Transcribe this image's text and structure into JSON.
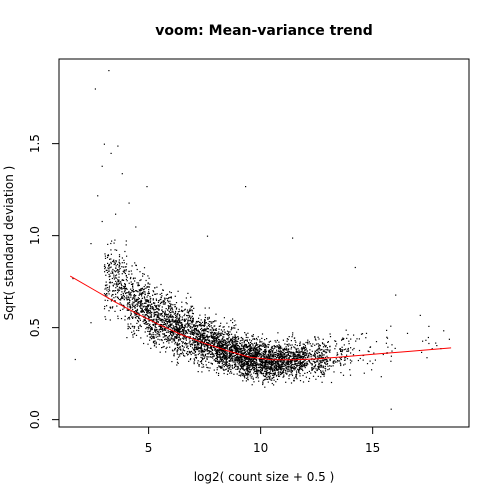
{
  "chart_data": {
    "type": "scatter",
    "title": "voom: Mean-variance trend",
    "xlabel": "log2( count size + 0.5 )",
    "ylabel": "Sqrt( standard deviation )",
    "xlim": [
      1.0,
      19.3
    ],
    "ylim": [
      -0.04,
      1.96
    ],
    "xticks": [
      5,
      10,
      15
    ],
    "yticks": [
      0.0,
      0.5,
      1.0,
      1.5
    ],
    "xtick_labels": [
      "5",
      "10",
      "15"
    ],
    "ytick_labels": [
      "0.0",
      "0.5",
      "1.0",
      "1.5"
    ],
    "grid": false,
    "point_color": "#000000",
    "trend_color": "#ff0000",
    "series": [
      {
        "kind": "points",
        "density_bands": [
          {
            "x": [
              3.0,
              4.0
            ],
            "y_center": 0.76,
            "y_spread": 0.22,
            "n": 260
          },
          {
            "x": [
              4.0,
              5.0
            ],
            "y_center": 0.63,
            "y_spread": 0.2,
            "n": 380
          },
          {
            "x": [
              5.0,
              6.0
            ],
            "y_center": 0.55,
            "y_spread": 0.18,
            "n": 430
          },
          {
            "x": [
              6.0,
              7.0
            ],
            "y_center": 0.49,
            "y_spread": 0.17,
            "n": 470
          },
          {
            "x": [
              7.0,
              8.0
            ],
            "y_center": 0.43,
            "y_spread": 0.15,
            "n": 520
          },
          {
            "x": [
              8.0,
              9.0
            ],
            "y_center": 0.38,
            "y_spread": 0.14,
            "n": 600
          },
          {
            "x": [
              9.0,
              10.0
            ],
            "y_center": 0.34,
            "y_spread": 0.13,
            "n": 620
          },
          {
            "x": [
              10.0,
              11.0
            ],
            "y_center": 0.32,
            "y_spread": 0.12,
            "n": 560
          },
          {
            "x": [
              11.0,
              12.0
            ],
            "y_center": 0.33,
            "y_spread": 0.12,
            "n": 420
          },
          {
            "x": [
              12.0,
              13.0
            ],
            "y_center": 0.34,
            "y_spread": 0.13,
            "n": 230
          },
          {
            "x": [
              13.0,
              14.0
            ],
            "y_center": 0.36,
            "y_spread": 0.14,
            "n": 90
          },
          {
            "x": [
              14.0,
              16.0
            ],
            "y_center": 0.38,
            "y_spread": 0.15,
            "n": 45
          },
          {
            "x": [
              16.0,
              18.5
            ],
            "y_center": 0.42,
            "y_spread": 0.12,
            "n": 12
          }
        ],
        "outliers": [
          {
            "x": 3.2,
            "y": 1.9
          },
          {
            "x": 2.6,
            "y": 1.8
          },
          {
            "x": 3.0,
            "y": 1.5
          },
          {
            "x": 3.6,
            "y": 1.49
          },
          {
            "x": 3.3,
            "y": 1.45
          },
          {
            "x": 2.9,
            "y": 1.38
          },
          {
            "x": 3.8,
            "y": 1.34
          },
          {
            "x": 4.9,
            "y": 1.27
          },
          {
            "x": 9.3,
            "y": 1.27
          },
          {
            "x": 2.7,
            "y": 1.22
          },
          {
            "x": 4.1,
            "y": 1.18
          },
          {
            "x": 3.5,
            "y": 1.12
          },
          {
            "x": 2.9,
            "y": 1.08
          },
          {
            "x": 4.4,
            "y": 1.05
          },
          {
            "x": 7.6,
            "y": 1.0
          },
          {
            "x": 11.4,
            "y": 0.99
          },
          {
            "x": 2.4,
            "y": 0.96
          },
          {
            "x": 14.2,
            "y": 0.83
          },
          {
            "x": 1.6,
            "y": 0.77
          },
          {
            "x": 16.0,
            "y": 0.68
          },
          {
            "x": 17.1,
            "y": 0.57
          },
          {
            "x": 17.4,
            "y": 0.34
          },
          {
            "x": 18.4,
            "y": 0.44
          },
          {
            "x": 15.8,
            "y": 0.06
          },
          {
            "x": 1.7,
            "y": 0.33
          },
          {
            "x": 2.4,
            "y": 0.53
          }
        ]
      },
      {
        "kind": "trend",
        "x": [
          1.5,
          2.5,
          3.5,
          4.5,
          5.5,
          6.5,
          7.5,
          8.5,
          9.5,
          10.5,
          11.5,
          12.5,
          13.5,
          14.5,
          15.5,
          16.5,
          17.5,
          18.5
        ],
        "y": [
          0.78,
          0.71,
          0.64,
          0.575,
          0.515,
          0.46,
          0.415,
          0.375,
          0.34,
          0.325,
          0.325,
          0.33,
          0.34,
          0.35,
          0.36,
          0.37,
          0.38,
          0.39
        ]
      }
    ]
  }
}
